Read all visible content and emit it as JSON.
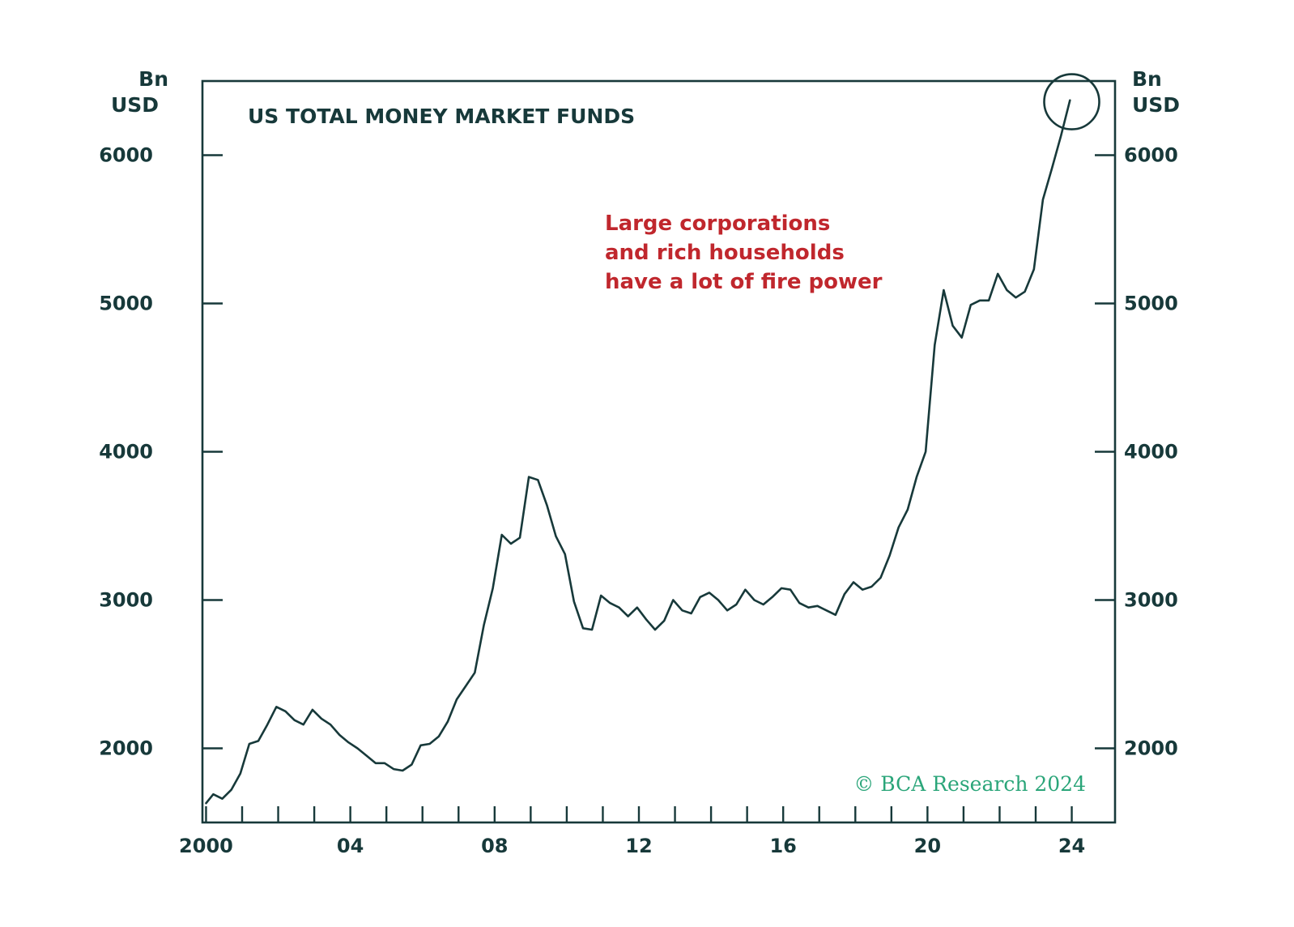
{
  "chart_data": {
    "type": "line",
    "title": "US TOTAL MONEY MARKET FUNDS",
    "ylabel_left": [
      "Bn",
      "USD"
    ],
    "ylabel_right": [
      "Bn",
      "USD"
    ],
    "ylim": [
      1500,
      6500
    ],
    "y_ticks": [
      2000,
      3000,
      4000,
      5000,
      6000
    ],
    "xlim": [
      1999.9,
      2025.2
    ],
    "x_tick_labels": [
      {
        "year": 2000,
        "label": "2000"
      },
      {
        "year": 2004,
        "label": "04"
      },
      {
        "year": 2008,
        "label": "08"
      },
      {
        "year": 2012,
        "label": "12"
      },
      {
        "year": 2016,
        "label": "16"
      },
      {
        "year": 2020,
        "label": "20"
      },
      {
        "year": 2024,
        "label": "24"
      }
    ],
    "x_minor_ticks": [
      2001,
      2002,
      2003,
      2005,
      2006,
      2007,
      2009,
      2010,
      2011,
      2013,
      2014,
      2015,
      2017,
      2018,
      2019,
      2021,
      2022,
      2023
    ],
    "series": [
      {
        "name": "US total money market funds",
        "color": "#17393a",
        "x": [
          2000.0,
          2000.2,
          2000.45,
          2000.7,
          2000.95,
          2001.2,
          2001.45,
          2001.7,
          2001.95,
          2002.2,
          2002.45,
          2002.7,
          2002.95,
          2003.2,
          2003.45,
          2003.7,
          2003.95,
          2004.2,
          2004.45,
          2004.7,
          2004.95,
          2005.2,
          2005.45,
          2005.7,
          2005.95,
          2006.2,
          2006.45,
          2006.7,
          2006.95,
          2007.2,
          2007.45,
          2007.7,
          2007.95,
          2008.2,
          2008.45,
          2008.7,
          2008.95,
          2009.2,
          2009.45,
          2009.7,
          2009.95,
          2010.2,
          2010.45,
          2010.7,
          2010.95,
          2011.2,
          2011.45,
          2011.7,
          2011.95,
          2012.2,
          2012.45,
          2012.7,
          2012.95,
          2013.2,
          2013.45,
          2013.7,
          2013.95,
          2014.2,
          2014.45,
          2014.7,
          2014.95,
          2015.2,
          2015.45,
          2015.7,
          2015.95,
          2016.2,
          2016.45,
          2016.7,
          2016.95,
          2017.2,
          2017.45,
          2017.7,
          2017.95,
          2018.2,
          2018.45,
          2018.7,
          2018.95,
          2019.2,
          2019.45,
          2019.7,
          2019.95,
          2020.2,
          2020.45,
          2020.7,
          2020.95,
          2021.2,
          2021.45,
          2021.7,
          2021.95,
          2022.2,
          2022.45,
          2022.7,
          2022.95,
          2023.2,
          2023.45,
          2023.7,
          2023.95
        ],
        "values": [
          1630,
          1690,
          1660,
          1720,
          1830,
          2030,
          2050,
          2160,
          2280,
          2250,
          2190,
          2160,
          2260,
          2200,
          2160,
          2090,
          2040,
          2000,
          1950,
          1900,
          1900,
          1860,
          1850,
          1890,
          2020,
          2030,
          2080,
          2180,
          2330,
          2420,
          2510,
          2830,
          3080,
          3440,
          3380,
          3420,
          3830,
          3810,
          3640,
          3430,
          3310,
          2990,
          2810,
          2800,
          3030,
          2980,
          2950,
          2890,
          2950,
          2870,
          2800,
          2860,
          3000,
          2930,
          2910,
          3020,
          3050,
          3000,
          2930,
          2970,
          3070,
          3000,
          2970,
          3020,
          3080,
          3070,
          2980,
          2950,
          2960,
          2930,
          2900,
          3040,
          3120,
          3070,
          3090,
          3150,
          3300,
          3490,
          3610,
          3830,
          4000,
          4720,
          5090,
          4850,
          4770,
          4990,
          5020,
          5020,
          5200,
          5090,
          5040,
          5080,
          5230,
          5700,
          5910,
          6130,
          6370
        ]
      }
    ],
    "annotations": [
      {
        "text": [
          "Large corporations",
          "and rich households",
          "have a lot of fire power"
        ],
        "color": "#c0272d"
      },
      {
        "type": "circle",
        "around": "latest value",
        "x": 2024.0,
        "y": 6360
      }
    ],
    "watermark": "© BCA Research 2024"
  }
}
